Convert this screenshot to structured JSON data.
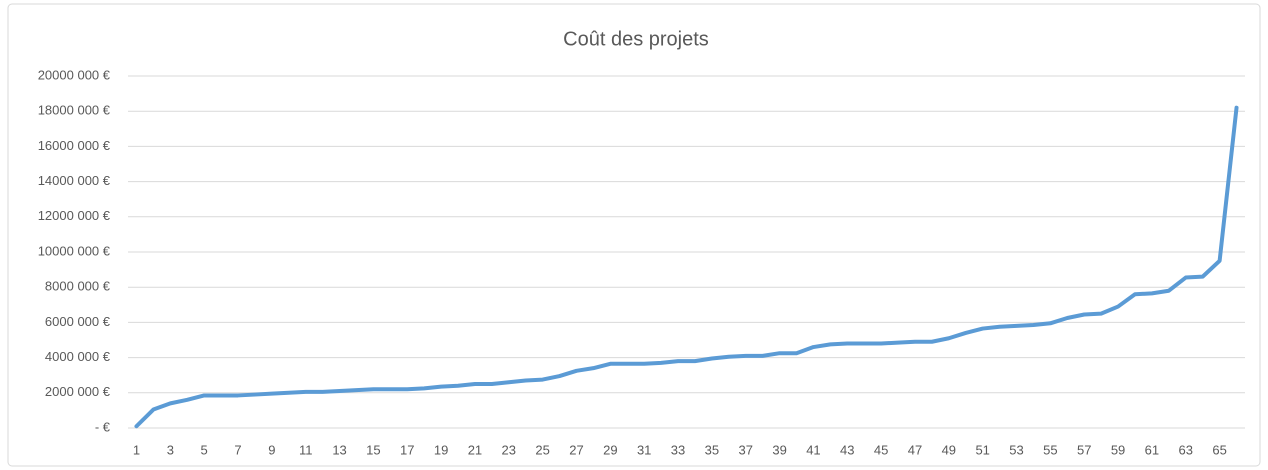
{
  "chart_data": {
    "type": "line",
    "title": "Coût des projets",
    "categories": [
      1,
      null,
      3,
      null,
      5,
      null,
      7,
      null,
      9,
      null,
      11,
      null,
      13,
      null,
      15,
      null,
      17,
      null,
      19,
      null,
      21,
      null,
      23,
      null,
      25,
      null,
      27,
      null,
      29,
      null,
      31,
      null,
      33,
      null,
      35,
      null,
      37,
      null,
      39,
      null,
      41,
      null,
      43,
      null,
      45,
      null,
      47,
      null,
      49,
      null,
      51,
      null,
      53,
      null,
      55,
      null,
      57,
      null,
      59,
      null,
      61,
      null,
      63,
      null,
      65,
      null
    ],
    "series": [
      {
        "name": "Coût",
        "color": "#5b9bd5",
        "values": [
          100000,
          1050000,
          1400000,
          1600000,
          1850000,
          1850000,
          1850000,
          1900000,
          1950000,
          2000000,
          2050000,
          2050000,
          2100000,
          2150000,
          2200000,
          2200000,
          2200000,
          2250000,
          2350000,
          2400000,
          2500000,
          2500000,
          2600000,
          2700000,
          2750000,
          2950000,
          3250000,
          3400000,
          3650000,
          3650000,
          3650000,
          3700000,
          3800000,
          3800000,
          3950000,
          4050000,
          4100000,
          4100000,
          4250000,
          4250000,
          4600000,
          4750000,
          4800000,
          4800000,
          4800000,
          4850000,
          4900000,
          4900000,
          5100000,
          5400000,
          5650000,
          5750000,
          5800000,
          5850000,
          5950000,
          6250000,
          6450000,
          6500000,
          6900000,
          7600000,
          7650000,
          7800000,
          8550000,
          8600000,
          9500000,
          18200000
        ]
      }
    ],
    "ylim": [
      0,
      20000000
    ],
    "yticks": [
      {
        "value": 0,
        "label": "-  €"
      },
      {
        "value": 2000000,
        "label": "2000 000 €"
      },
      {
        "value": 4000000,
        "label": "4000 000 €"
      },
      {
        "value": 6000000,
        "label": "6000 000 €"
      },
      {
        "value": 8000000,
        "label": "8000 000 €"
      },
      {
        "value": 10000000,
        "label": "10000 000 €"
      },
      {
        "value": 12000000,
        "label": "12000 000 €"
      },
      {
        "value": 14000000,
        "label": "14000 000 €"
      },
      {
        "value": 16000000,
        "label": "16000 000 €"
      },
      {
        "value": 18000000,
        "label": "18000 000 €"
      },
      {
        "value": 20000000,
        "label": "20000 000 €"
      }
    ],
    "grid": true
  }
}
